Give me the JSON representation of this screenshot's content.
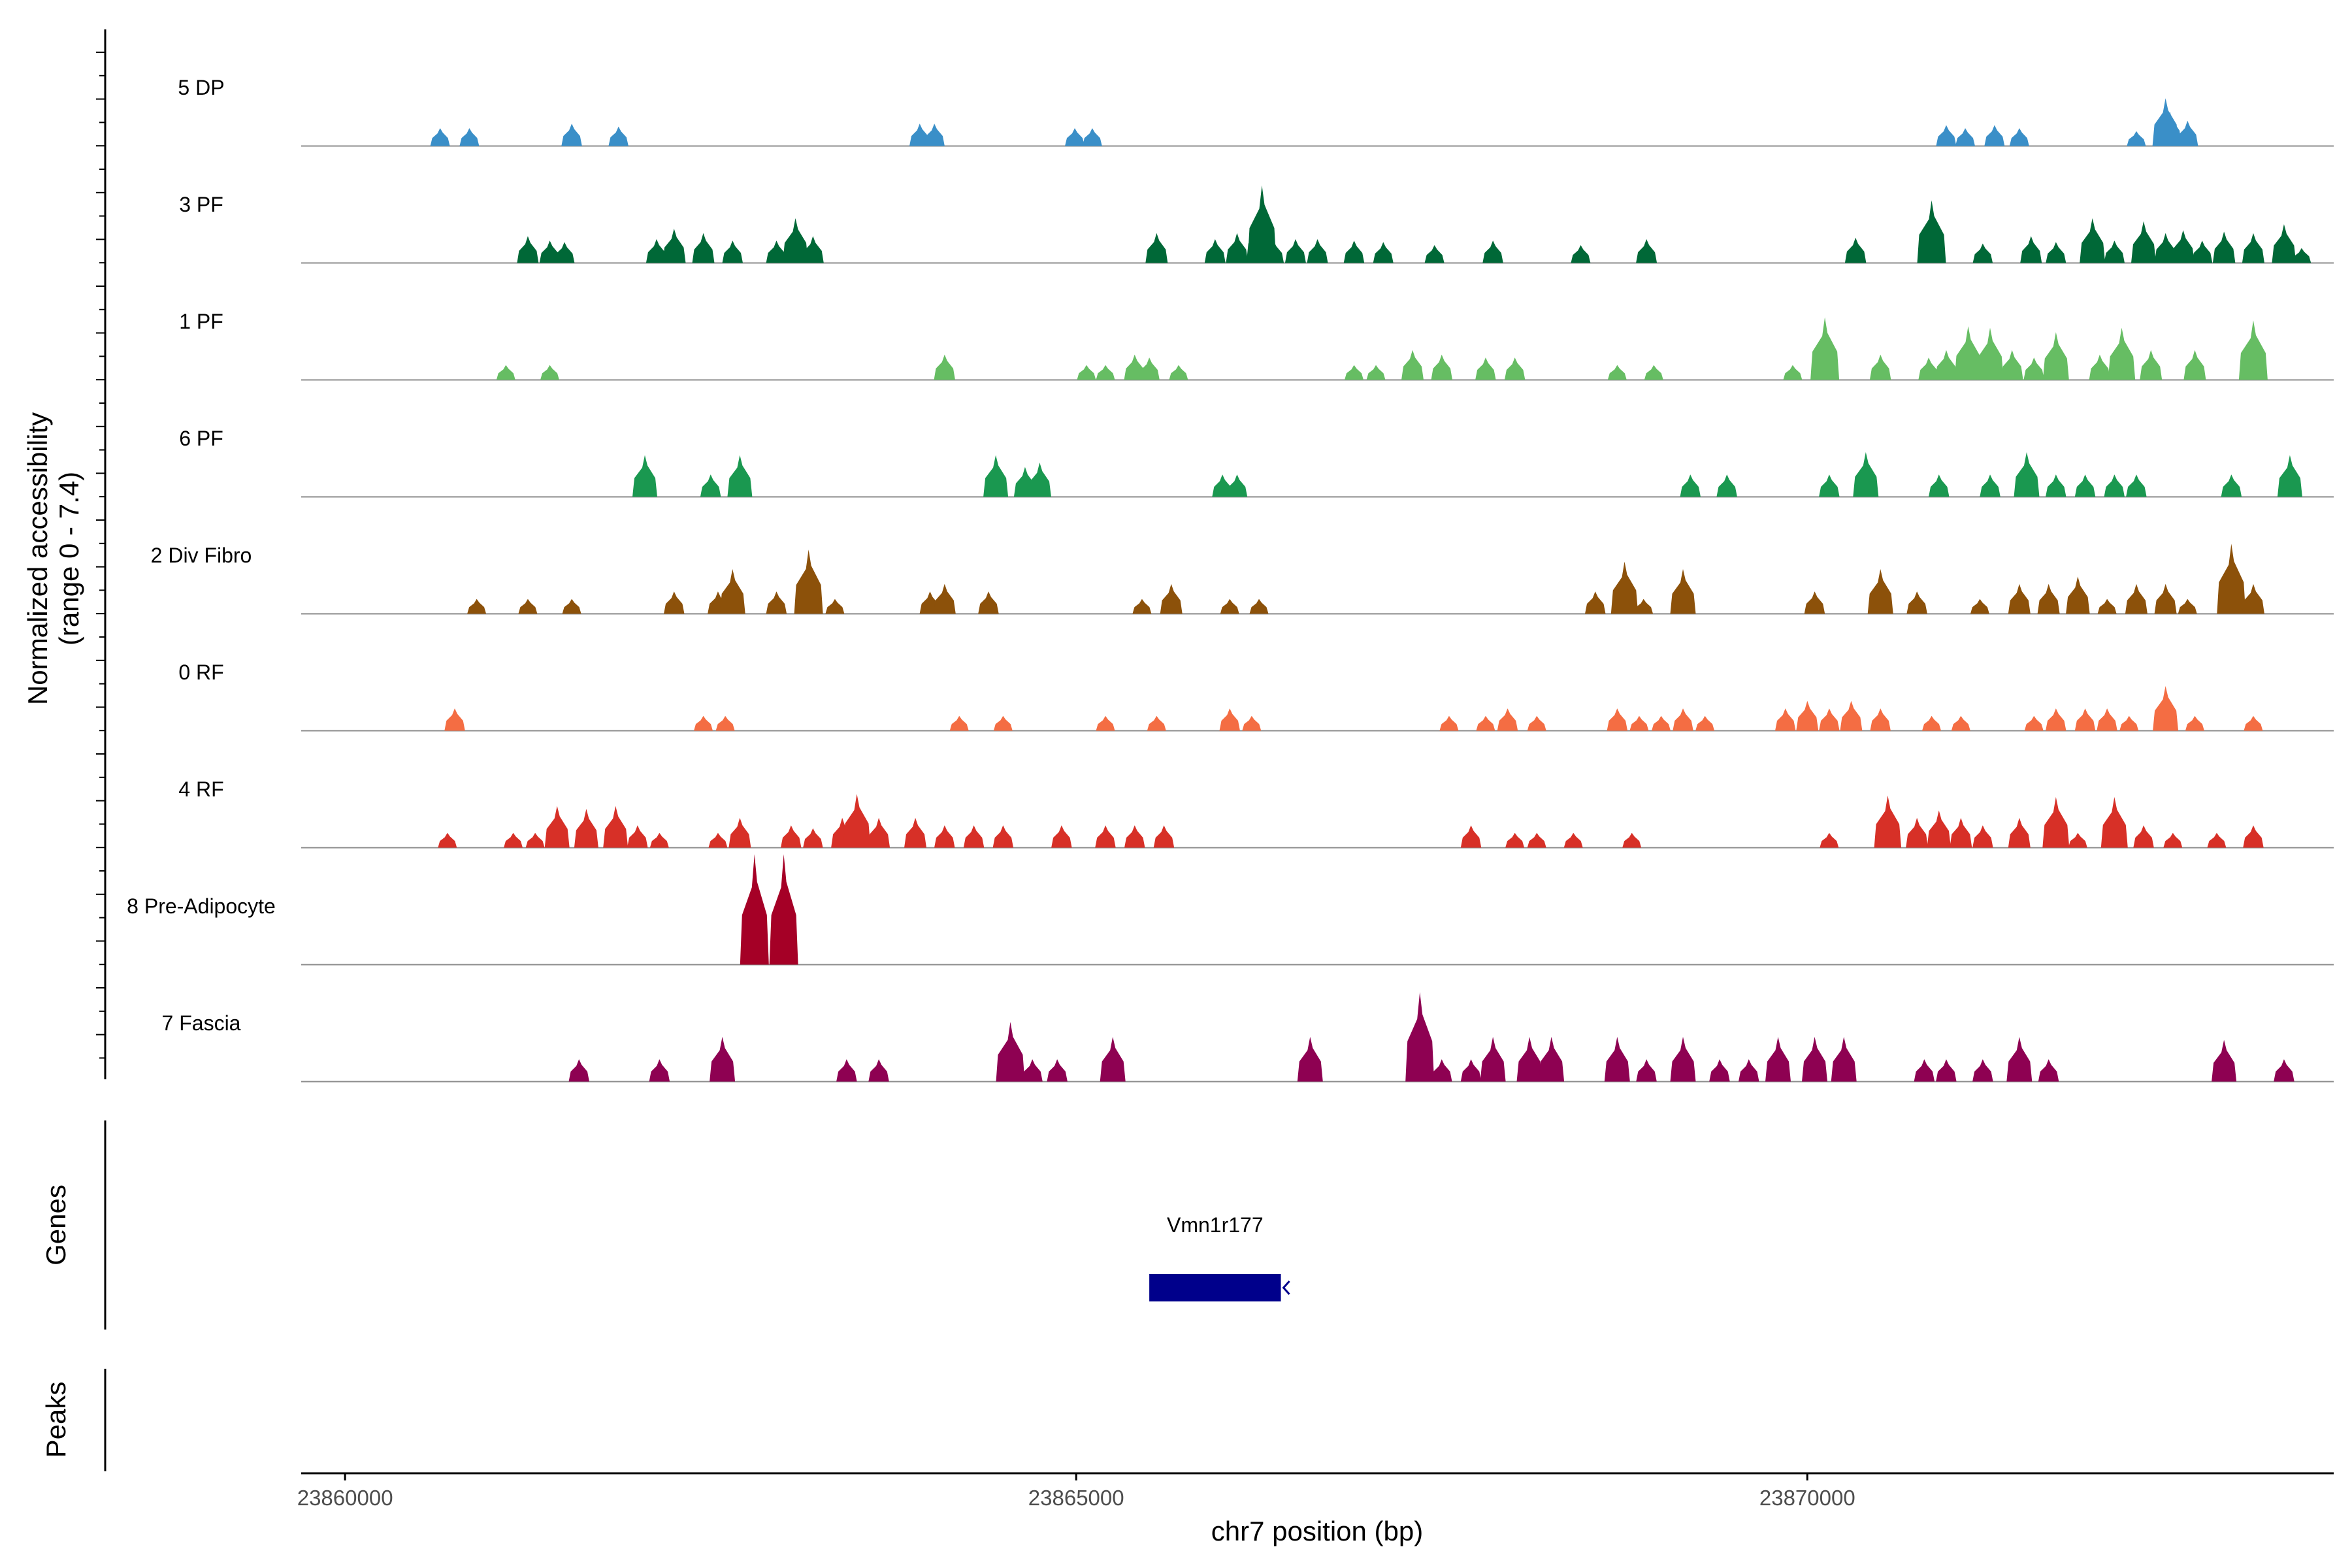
{
  "chart_data": {
    "type": "area",
    "title": "",
    "ylabel": "Normalized accessibility",
    "ylabel_range": "(range 0 - 7.4)",
    "ylim": [
      0,
      7.4
    ],
    "xlabel": "chr7 position (bp)",
    "xlim": [
      23859700,
      23873600
    ],
    "xticks": [
      23860000,
      23865000,
      23870000
    ],
    "xtick_labels": [
      "23860000",
      "23865000",
      "23870000"
    ],
    "tracks": [
      {
        "name": "5 DP",
        "color": "#3A8FC8",
        "peaks": [
          [
            23860650,
            1.2
          ],
          [
            23860850,
            1.2
          ],
          [
            23861550,
            1.5
          ],
          [
            23861870,
            1.3
          ],
          [
            23863930,
            1.5
          ],
          [
            23864030,
            1.5
          ],
          [
            23864990,
            1.2
          ],
          [
            23865110,
            1.2
          ],
          [
            23870950,
            1.4
          ],
          [
            23871080,
            1.2
          ],
          [
            23871280,
            1.4
          ],
          [
            23871450,
            1.2
          ],
          [
            23872250,
            1.0
          ],
          [
            23872450,
            3.2
          ],
          [
            23872480,
            2.3
          ],
          [
            23872600,
            1.7
          ]
        ]
      },
      {
        "name": "3 PF",
        "color": "#006837",
        "peaks": [
          [
            23861250,
            1.8
          ],
          [
            23861400,
            1.5
          ],
          [
            23861500,
            1.4
          ],
          [
            23862130,
            1.6
          ],
          [
            23862250,
            2.3
          ],
          [
            23862450,
            2.0
          ],
          [
            23862650,
            1.5
          ],
          [
            23862950,
            1.5
          ],
          [
            23863080,
            3.0
          ],
          [
            23863200,
            1.8
          ],
          [
            23865550,
            2.0
          ],
          [
            23865950,
            1.6
          ],
          [
            23866100,
            2.0
          ],
          [
            23866250,
            2.9
          ],
          [
            23866270,
            5.2
          ],
          [
            23866350,
            1.5
          ],
          [
            23866500,
            1.6
          ],
          [
            23866650,
            1.6
          ],
          [
            23866900,
            1.5
          ],
          [
            23867100,
            1.4
          ],
          [
            23867450,
            1.2
          ],
          [
            23867850,
            1.5
          ],
          [
            23868450,
            1.2
          ],
          [
            23868900,
            1.6
          ],
          [
            23870330,
            1.7
          ],
          [
            23870850,
            4.2
          ],
          [
            23871200,
            1.3
          ],
          [
            23871530,
            1.8
          ],
          [
            23871700,
            1.4
          ],
          [
            23871950,
            3.0
          ],
          [
            23872100,
            1.5
          ],
          [
            23872300,
            2.8
          ],
          [
            23872450,
            2.0
          ],
          [
            23872570,
            2.2
          ],
          [
            23872700,
            1.5
          ],
          [
            23872850,
            2.1
          ],
          [
            23873050,
            2.0
          ],
          [
            23873260,
            2.6
          ],
          [
            23873380,
            1.0
          ]
        ]
      },
      {
        "name": "1 PF",
        "color": "#66BD63",
        "peaks": [
          [
            23861100,
            1.0
          ],
          [
            23861400,
            1.0
          ],
          [
            23864100,
            1.7
          ],
          [
            23865070,
            1.0
          ],
          [
            23865200,
            1.0
          ],
          [
            23865400,
            1.7
          ],
          [
            23865500,
            1.5
          ],
          [
            23865700,
            1.0
          ],
          [
            23866900,
            1.0
          ],
          [
            23867050,
            1.0
          ],
          [
            23867300,
            2.0
          ],
          [
            23867500,
            1.7
          ],
          [
            23867800,
            1.5
          ],
          [
            23868000,
            1.5
          ],
          [
            23868700,
            1.0
          ],
          [
            23868950,
            1.0
          ],
          [
            23869900,
            1.0
          ],
          [
            23870120,
            4.2
          ],
          [
            23870500,
            1.7
          ],
          [
            23870830,
            1.5
          ],
          [
            23870950,
            2.0
          ],
          [
            23871100,
            3.6
          ],
          [
            23871250,
            3.5
          ],
          [
            23871400,
            2.0
          ],
          [
            23871550,
            1.5
          ],
          [
            23871700,
            3.2
          ],
          [
            23872000,
            1.7
          ],
          [
            23872150,
            3.5
          ],
          [
            23872350,
            2.0
          ],
          [
            23872650,
            2.0
          ],
          [
            23873050,
            4.0
          ]
        ]
      },
      {
        "name": "6 PF",
        "color": "#1A9850",
        "peaks": [
          [
            23862050,
            2.8
          ],
          [
            23862500,
            1.5
          ],
          [
            23862700,
            2.8
          ],
          [
            23864450,
            2.8
          ],
          [
            23864650,
            2.0
          ],
          [
            23864750,
            2.3
          ],
          [
            23866000,
            1.5
          ],
          [
            23866100,
            1.5
          ],
          [
            23869200,
            1.5
          ],
          [
            23869450,
            1.5
          ],
          [
            23870150,
            1.5
          ],
          [
            23870400,
            3.0
          ],
          [
            23870900,
            1.5
          ],
          [
            23871250,
            1.5
          ],
          [
            23871500,
            3.0
          ],
          [
            23871700,
            1.5
          ],
          [
            23871900,
            1.5
          ],
          [
            23872100,
            1.5
          ],
          [
            23872250,
            1.5
          ],
          [
            23872900,
            1.5
          ],
          [
            23873300,
            2.8
          ]
        ]
      },
      {
        "name": "2 Div Fibro",
        "color": "#8C510A",
        "peaks": [
          [
            23860900,
            1.0
          ],
          [
            23861250,
            1.0
          ],
          [
            23861550,
            1.0
          ],
          [
            23862250,
            1.5
          ],
          [
            23862550,
            1.5
          ],
          [
            23862650,
            3.0
          ],
          [
            23862950,
            1.5
          ],
          [
            23863150,
            1.5
          ],
          [
            23863170,
            4.3
          ],
          [
            23863350,
            1.0
          ],
          [
            23864000,
            1.5
          ],
          [
            23864100,
            2.0
          ],
          [
            23864400,
            1.5
          ],
          [
            23865450,
            1.0
          ],
          [
            23865650,
            2.0
          ],
          [
            23866050,
            1.0
          ],
          [
            23866250,
            1.0
          ],
          [
            23868550,
            1.5
          ],
          [
            23868750,
            3.5
          ],
          [
            23868880,
            1.0
          ],
          [
            23869150,
            3.0
          ],
          [
            23870050,
            1.5
          ],
          [
            23870500,
            3.0
          ],
          [
            23870750,
            1.5
          ],
          [
            23871180,
            1.0
          ],
          [
            23871450,
            2.0
          ],
          [
            23871650,
            2.0
          ],
          [
            23871850,
            2.5
          ],
          [
            23872050,
            1.0
          ],
          [
            23872250,
            2.0
          ],
          [
            23872450,
            2.0
          ],
          [
            23872600,
            1.0
          ],
          [
            23872900,
            4.7
          ],
          [
            23873050,
            2.0
          ]
        ]
      },
      {
        "name": "0 RF",
        "color": "#F46D43",
        "peaks": [
          [
            23860750,
            1.5
          ],
          [
            23862450,
            1.0
          ],
          [
            23862600,
            1.0
          ],
          [
            23864200,
            1.0
          ],
          [
            23864500,
            1.0
          ],
          [
            23865200,
            1.0
          ],
          [
            23865550,
            1.0
          ],
          [
            23866050,
            1.5
          ],
          [
            23866200,
            1.0
          ],
          [
            23867550,
            1.0
          ],
          [
            23867800,
            1.0
          ],
          [
            23867950,
            1.5
          ],
          [
            23868150,
            1.0
          ],
          [
            23868700,
            1.5
          ],
          [
            23868850,
            1.0
          ],
          [
            23869000,
            1.0
          ],
          [
            23869150,
            1.5
          ],
          [
            23869300,
            1.0
          ],
          [
            23869850,
            1.5
          ],
          [
            23870000,
            2.0
          ],
          [
            23870150,
            1.5
          ],
          [
            23870300,
            2.0
          ],
          [
            23870500,
            1.5
          ],
          [
            23870850,
            1.0
          ],
          [
            23871050,
            1.0
          ],
          [
            23871550,
            1.0
          ],
          [
            23871700,
            1.5
          ],
          [
            23871900,
            1.5
          ],
          [
            23872050,
            1.5
          ],
          [
            23872200,
            1.0
          ],
          [
            23872450,
            3.0
          ],
          [
            23872650,
            1.0
          ],
          [
            23873050,
            1.0
          ]
        ]
      },
      {
        "name": "4 RF",
        "color": "#D73027",
        "peaks": [
          [
            23860700,
            1.0
          ],
          [
            23861150,
            1.0
          ],
          [
            23861300,
            1.0
          ],
          [
            23861450,
            2.8
          ],
          [
            23861650,
            2.6
          ],
          [
            23861850,
            2.8
          ],
          [
            23862000,
            1.5
          ],
          [
            23862150,
            1.0
          ],
          [
            23862550,
            1.0
          ],
          [
            23862700,
            2.0
          ],
          [
            23863050,
            1.5
          ],
          [
            23863200,
            1.3
          ],
          [
            23863400,
            2.0
          ],
          [
            23863500,
            3.6
          ],
          [
            23863650,
            2.0
          ],
          [
            23863900,
            2.0
          ],
          [
            23864100,
            1.5
          ],
          [
            23864300,
            1.5
          ],
          [
            23864500,
            1.5
          ],
          [
            23864900,
            1.5
          ],
          [
            23865200,
            1.5
          ],
          [
            23865400,
            1.5
          ],
          [
            23865600,
            1.5
          ],
          [
            23867700,
            1.5
          ],
          [
            23868000,
            1.0
          ],
          [
            23868150,
            1.0
          ],
          [
            23868400,
            1.0
          ],
          [
            23868800,
            1.0
          ],
          [
            23870150,
            1.0
          ],
          [
            23870550,
            3.5
          ],
          [
            23870750,
            2.0
          ],
          [
            23870900,
            2.5
          ],
          [
            23871050,
            2.0
          ],
          [
            23871200,
            1.5
          ],
          [
            23871450,
            2.0
          ],
          [
            23871700,
            3.4
          ],
          [
            23871850,
            1.0
          ],
          [
            23872100,
            3.4
          ],
          [
            23872300,
            1.5
          ],
          [
            23872500,
            1.0
          ],
          [
            23872800,
            1.0
          ],
          [
            23873050,
            1.5
          ]
        ]
      },
      {
        "name": "8 Pre-Adipocyte",
        "color": "#A50026",
        "peaks": [
          [
            23862800,
            7.4
          ],
          [
            23863000,
            7.4
          ]
        ]
      },
      {
        "name": "7 Fascia",
        "color": "#8E0152",
        "peaks": [
          [
            23861600,
            1.5
          ],
          [
            23862150,
            1.5
          ],
          [
            23862580,
            3.0
          ],
          [
            23863430,
            1.5
          ],
          [
            23863650,
            1.5
          ],
          [
            23864550,
            4.0
          ],
          [
            23864700,
            1.5
          ],
          [
            23864870,
            1.5
          ],
          [
            23865250,
            3.0
          ],
          [
            23866600,
            3.0
          ],
          [
            23867350,
            6.0
          ],
          [
            23867500,
            1.5
          ],
          [
            23867700,
            1.5
          ],
          [
            23867850,
            3.0
          ],
          [
            23868100,
            3.0
          ],
          [
            23868250,
            3.0
          ],
          [
            23868700,
            3.0
          ],
          [
            23868900,
            1.5
          ],
          [
            23869150,
            3.0
          ],
          [
            23869400,
            1.5
          ],
          [
            23869600,
            1.5
          ],
          [
            23869800,
            3.0
          ],
          [
            23870050,
            1.5
          ],
          [
            23870050,
            3.0
          ],
          [
            23870250,
            3.0
          ],
          [
            23870800,
            1.5
          ],
          [
            23870950,
            1.5
          ],
          [
            23871200,
            1.5
          ],
          [
            23871450,
            3.0
          ],
          [
            23871650,
            1.5
          ],
          [
            23872850,
            2.8
          ],
          [
            23873260,
            1.5
          ]
        ]
      }
    ],
    "genes": [
      {
        "name": "Vmn1r177",
        "start": 23865500,
        "end": 23866400,
        "strand": "-",
        "color": "#00008B"
      }
    ],
    "panel_labels": {
      "genes": "Genes",
      "peaks": "Peaks"
    }
  }
}
